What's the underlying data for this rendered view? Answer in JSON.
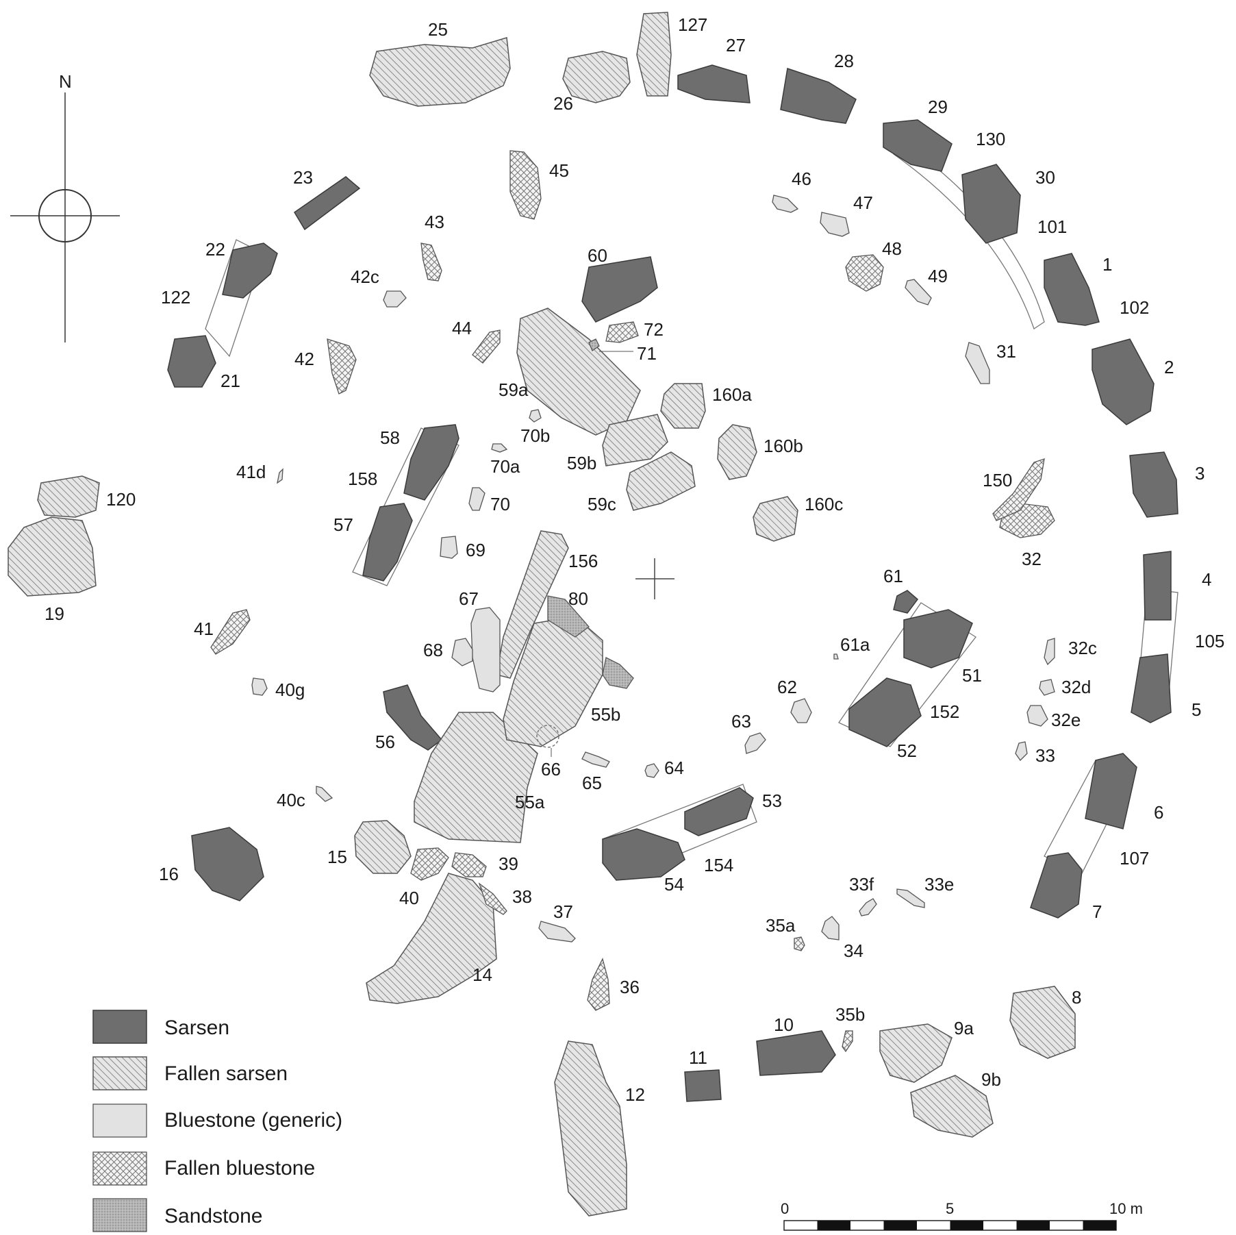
{
  "compass": {
    "north_label": "N"
  },
  "stones": {
    "s1": "1",
    "s2": "2",
    "s3": "3",
    "s4": "4",
    "s5": "5",
    "s6": "6",
    "s7": "7",
    "s8": "8",
    "s9a": "9a",
    "s9b": "9b",
    "s10": "10",
    "s11": "11",
    "s12": "12",
    "s14": "14",
    "s15": "15",
    "s16": "16",
    "s19": "19",
    "s21": "21",
    "s22": "22",
    "s23": "23",
    "s25": "25",
    "s26": "26",
    "s27": "27",
    "s28": "28",
    "s29": "29",
    "s30": "30",
    "s31": "31",
    "s32": "32",
    "s32c": "32c",
    "s32d": "32d",
    "s32e": "32e",
    "s33": "33",
    "s33e": "33e",
    "s33f": "33f",
    "s34": "34",
    "s35a": "35a",
    "s35b": "35b",
    "s36": "36",
    "s37": "37",
    "s38": "38",
    "s39": "39",
    "s40": "40",
    "s40c": "40c",
    "s40g": "40g",
    "s41": "41",
    "s41d": "41d",
    "s42": "42",
    "s42c": "42c",
    "s43": "43",
    "s44": "44",
    "s45": "45",
    "s46": "46",
    "s47": "47",
    "s48": "48",
    "s49": "49",
    "s51": "51",
    "s52": "52",
    "s53": "53",
    "s54": "54",
    "s55a": "55a",
    "s55b": "55b",
    "s56": "56",
    "s57": "57",
    "s58": "58",
    "s59a": "59a",
    "s59b": "59b",
    "s59c": "59c",
    "s60": "60",
    "s61": "61",
    "s61a": "61a",
    "s62": "62",
    "s63": "63",
    "s64": "64",
    "s65": "65",
    "s66": "66",
    "s67": "67",
    "s68": "68",
    "s69": "69",
    "s70": "70",
    "s70a": "70a",
    "s70b": "70b",
    "s71": "71",
    "s72": "72",
    "s80": "80",
    "s101": "101",
    "s102": "102",
    "s105": "105",
    "s107": "107",
    "s120": "120",
    "s122": "122",
    "s127": "127",
    "s130": "130",
    "s150": "150",
    "s152": "152",
    "s154": "154",
    "s156": "156",
    "s158": "158",
    "s160a": "160a",
    "s160b": "160b",
    "s160c": "160c"
  },
  "legend": {
    "sarsen": "Sarsen",
    "fallen_sarsen": "Fallen sarsen",
    "bluestone": "Bluestone (generic)",
    "fallen_bluestone": "Fallen bluestone",
    "sandstone": "Sandstone"
  },
  "scale": {
    "zero": "0",
    "mid": "5",
    "end": "10 m"
  }
}
